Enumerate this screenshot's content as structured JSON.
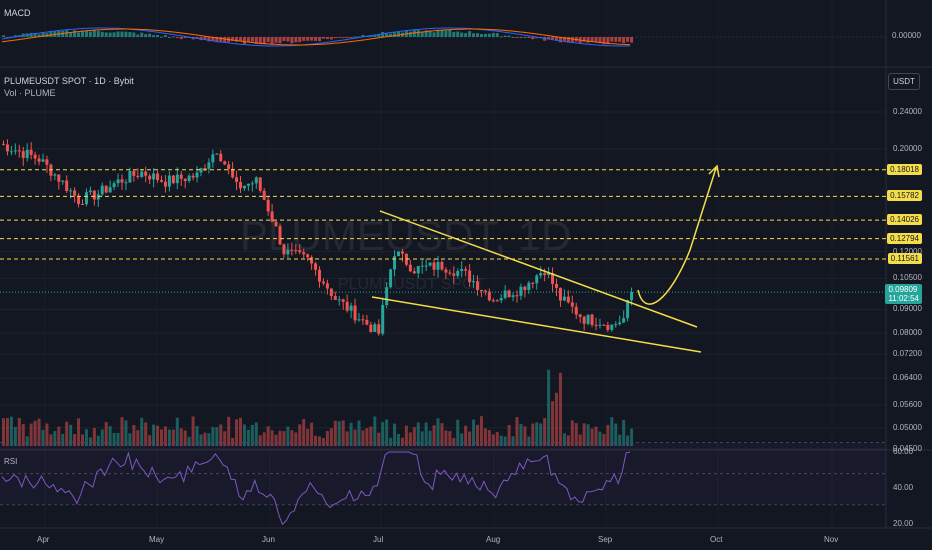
{
  "panels": {
    "macd_label": "MACD",
    "macd_value": "0.00000",
    "symbol_title": "PLUMEUSDT SPOT · 1D · Bybit",
    "volume_label": "Vol · PLUME",
    "currency": "USDT",
    "watermark": "PLUMEUSDT, 1D",
    "watermark_sub": "PLUMEUSDT SPOT",
    "rsi_label": "RSI"
  },
  "countdown": "11:02:54",
  "colors": {
    "background": "#131722",
    "up": "#26a69a",
    "down": "#ef5350",
    "pattern": "#f5dd4a",
    "rsi": "#7e57c2",
    "macd": "#2962ff",
    "signal": "#ff6d00"
  },
  "chart_data": {
    "type": "candlestick",
    "price_axis": {
      "scale": "log",
      "ticks": [
        "0.24000",
        "0.20000",
        "0.12000",
        "0.10500",
        "0.09000",
        "0.08000",
        "0.07200",
        "0.06400",
        "0.05600",
        "0.05000",
        "0.04500"
      ]
    },
    "time_axis": [
      "Apr",
      "May",
      "Jun",
      "Jul",
      "Aug",
      "Sep",
      "Oct",
      "Nov"
    ],
    "levels": [
      "0.18018",
      "0.15782",
      "0.14026",
      "0.12794",
      "0.11561"
    ],
    "current_price": "0.09809",
    "pattern": "falling wedge",
    "rsi_axis": [
      "60.00",
      "40.00",
      "20.00"
    ],
    "candles_count": 160
  }
}
